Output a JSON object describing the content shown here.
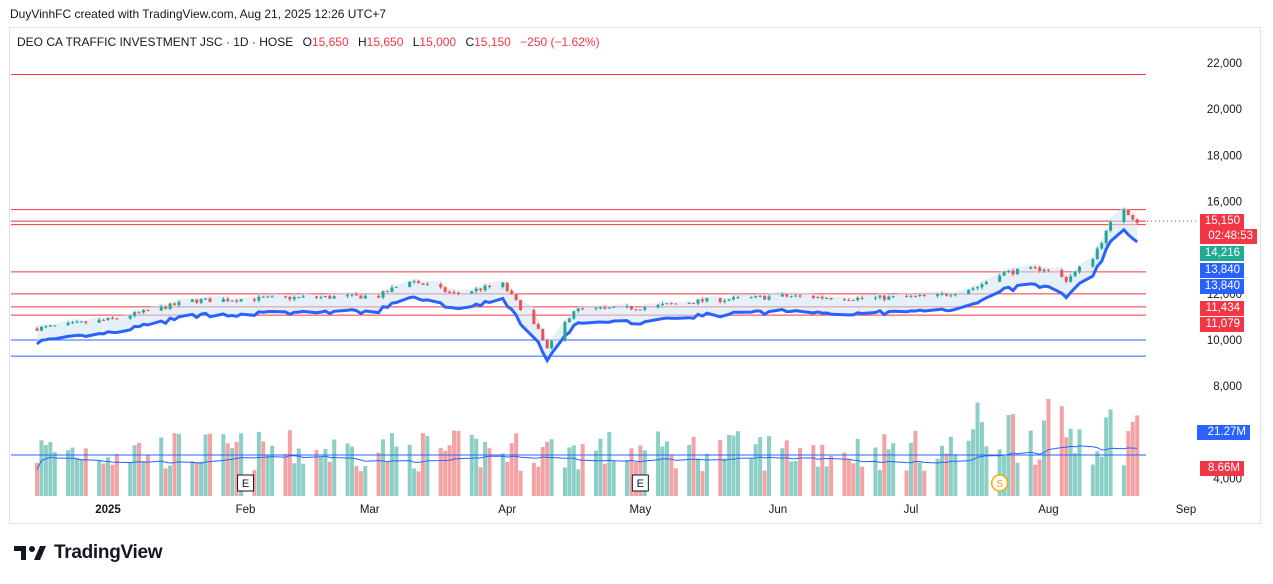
{
  "header": {
    "attribution": "DuyVinhFC created with TradingView.com, Aug 21, 2025 12:26 UTC+7"
  },
  "legend": {
    "symbol": "DEO CA TRAFFIC INVESTMENT JSC · 1D · HOSE",
    "o_label": "O",
    "o_value": "15,650",
    "h_label": "H",
    "h_value": "15,650",
    "l_label": "L",
    "l_value": "15,000",
    "c_label": "C",
    "c_value": "15,150",
    "change": "−250 (−1.62%)"
  },
  "price_axis": {
    "ticks": [
      "22,000",
      "20,000",
      "18,000",
      "16,000",
      "12,000",
      "10,000",
      "8,000",
      "4,000"
    ],
    "tick_values": [
      22000,
      20000,
      18000,
      16000,
      12000,
      10000,
      8000,
      4000
    ]
  },
  "badges": {
    "last_price": "15,150",
    "countdown": "02:48:53",
    "lvl_14216": "14,216",
    "lvl_13840a": "13,840",
    "lvl_13840b": "13,840",
    "lvl_11434": "11,434",
    "lvl_11079": "11,079",
    "vol_ma": "21.27M",
    "volume": "8.66M"
  },
  "colors": {
    "up": "#26a69a",
    "down": "#ef5350",
    "vol_up": "#8ccfc6",
    "vol_down": "#f4a3a5",
    "level_line": "#f23645",
    "support_blue": "#2962ff",
    "trend_green": "#4caf50"
  },
  "time_axis": {
    "labels": [
      "2025",
      "Feb",
      "Mar",
      "Apr",
      "May",
      "Jun",
      "Jul",
      "Aug",
      "Sep"
    ]
  },
  "event_markers": [
    {
      "label": "E",
      "icon": "earnings-icon"
    },
    {
      "label": "E",
      "icon": "earnings-icon"
    },
    {
      "label": "S",
      "icon": "split-icon"
    }
  ],
  "footer": {
    "brand": "TradingView"
  },
  "chart_data": {
    "type": "candlestick",
    "title": "DEO CA TRAFFIC INVESTMENT JSC · 1D · HOSE",
    "ylim": [
      3500,
      23000
    ],
    "x_range": [
      "2024-12-16",
      "2025-09-01"
    ],
    "horizontal_levels": [
      21500,
      15650,
      15150,
      15000,
      12950,
      12000,
      11434,
      11079,
      10000,
      9300
    ],
    "close_anchors": [
      {
        "date": "2024-12-16",
        "close": 10500
      },
      {
        "date": "2025-01-02",
        "close": 10900
      },
      {
        "date": "2025-01-20",
        "close": 11700
      },
      {
        "date": "2025-02-05",
        "close": 11800
      },
      {
        "date": "2025-03-03",
        "close": 11900
      },
      {
        "date": "2025-03-10",
        "close": 12600
      },
      {
        "date": "2025-03-20",
        "close": 12000
      },
      {
        "date": "2025-03-31",
        "close": 12400
      },
      {
        "date": "2025-04-08",
        "close": 10400
      },
      {
        "date": "2025-04-10",
        "close": 9600
      },
      {
        "date": "2025-04-16",
        "close": 11300
      },
      {
        "date": "2025-05-01",
        "close": 11400
      },
      {
        "date": "2025-05-15",
        "close": 11700
      },
      {
        "date": "2025-06-02",
        "close": 11900
      },
      {
        "date": "2025-06-20",
        "close": 11800
      },
      {
        "date": "2025-07-07",
        "close": 11900
      },
      {
        "date": "2025-07-16",
        "close": 12300
      },
      {
        "date": "2025-07-21",
        "close": 12900
      },
      {
        "date": "2025-07-31",
        "close": 13100
      },
      {
        "date": "2025-08-05",
        "close": 12600
      },
      {
        "date": "2025-08-11",
        "close": 13600
      },
      {
        "date": "2025-08-15",
        "close": 15000
      },
      {
        "date": "2025-08-18",
        "close": 15700
      },
      {
        "date": "2025-08-21",
        "close": 15150
      }
    ],
    "volume_ma": 21.27,
    "last_volume": 8.66,
    "volume_unit": "M"
  }
}
